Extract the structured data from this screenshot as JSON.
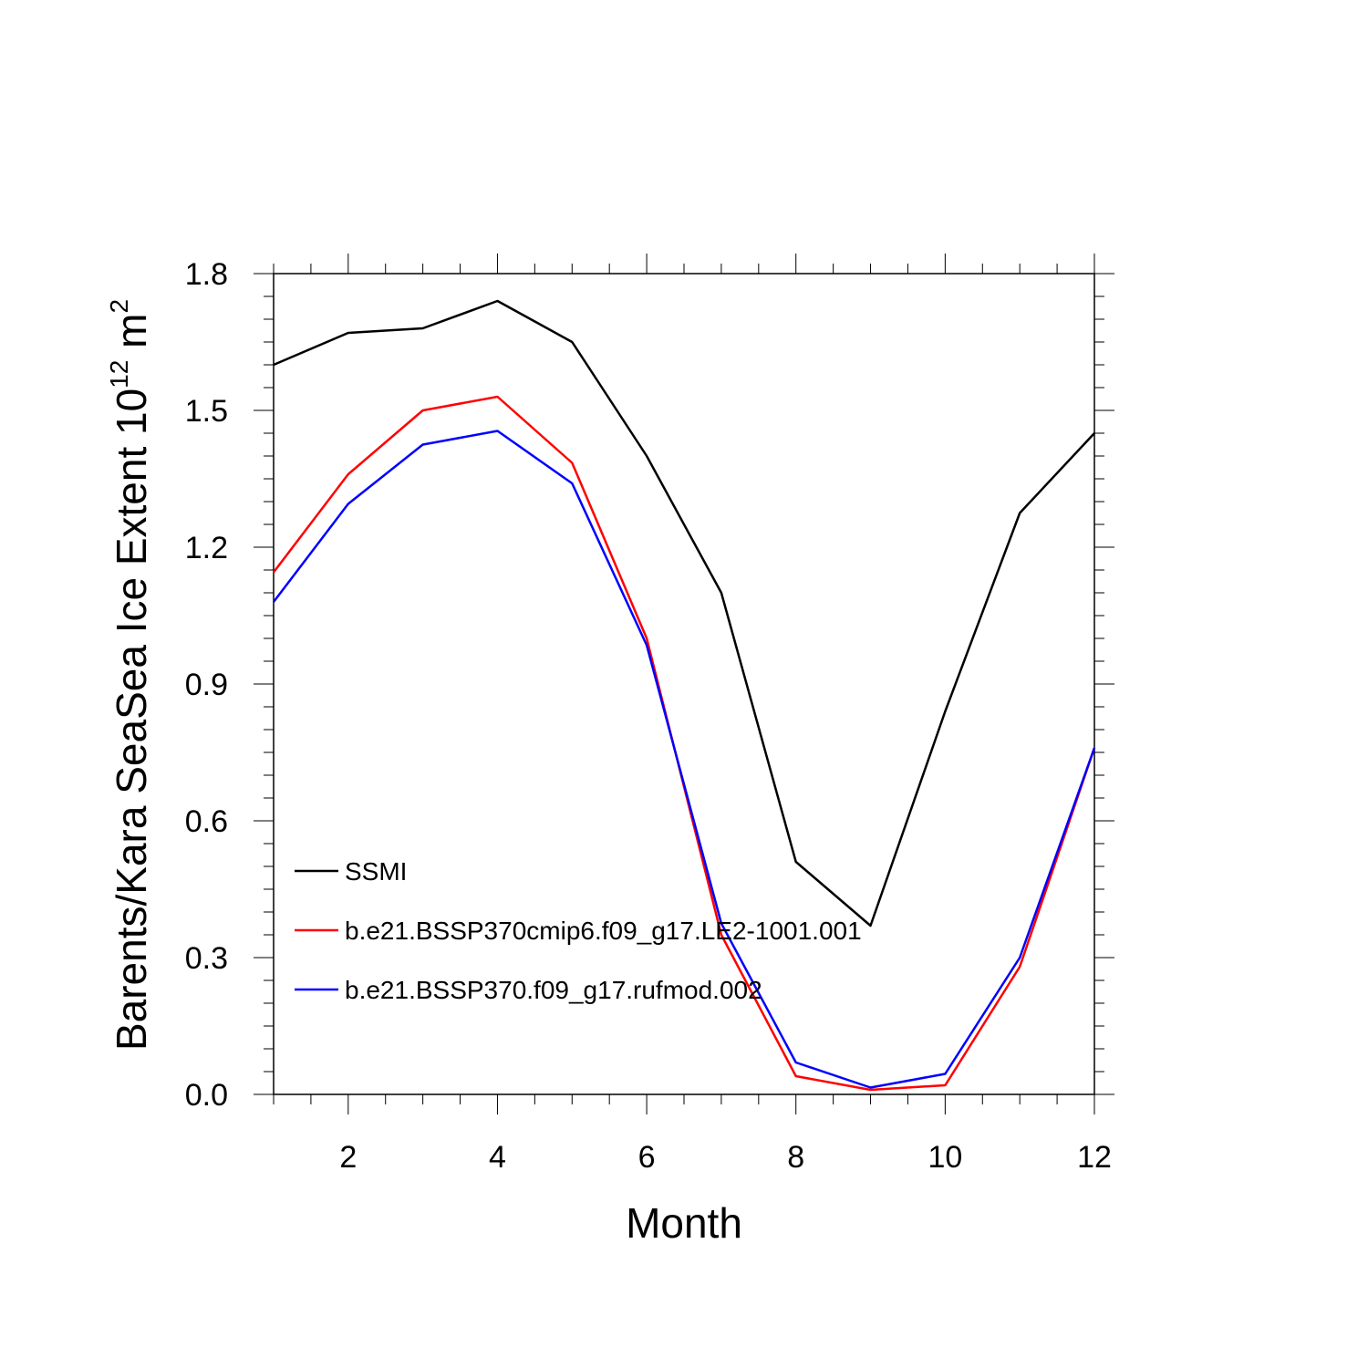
{
  "chart_data": {
    "type": "line",
    "title": "",
    "xlabel": "Month",
    "ylabel": "Barents/Kara SeaSea Ice Extent 10",
    "ylabel_superscript": "12",
    "ylabel_unit": " m",
    "ylabel_unit_superscript": "2",
    "xlim": [
      1,
      12
    ],
    "ylim": [
      0.0,
      1.8
    ],
    "x": [
      1,
      2,
      3,
      4,
      5,
      6,
      7,
      8,
      9,
      10,
      11,
      12
    ],
    "xticks": [
      "2",
      "4",
      "6",
      "8",
      "10",
      "12"
    ],
    "xtick_values": [
      2,
      4,
      6,
      8,
      10,
      12
    ],
    "yticks": [
      "0.0",
      "0.3",
      "0.6",
      "0.9",
      "1.2",
      "1.5",
      "1.8"
    ],
    "ytick_values": [
      0.0,
      0.3,
      0.6,
      0.9,
      1.2,
      1.5,
      1.8
    ],
    "legend_position": "bottom-left",
    "series": [
      {
        "name": "SSMI",
        "color": "#000000",
        "values": [
          1.6,
          1.67,
          1.68,
          1.74,
          1.65,
          1.4,
          1.1,
          0.51,
          0.37,
          0.84,
          1.275,
          1.45
        ]
      },
      {
        "name": "b.e21.BSSP370cmip6.f09_g17.LE2-1001.001",
        "color": "#ff0000",
        "values": [
          1.145,
          1.36,
          1.5,
          1.53,
          1.385,
          1.0,
          0.35,
          0.04,
          0.01,
          0.02,
          0.28,
          0.76
        ]
      },
      {
        "name": "b.e21.BSSP370.f09_g17.rufmod.002",
        "color": "#0000ff",
        "values": [
          1.08,
          1.295,
          1.425,
          1.455,
          1.34,
          0.985,
          0.375,
          0.07,
          0.015,
          0.045,
          0.3,
          0.76
        ]
      }
    ]
  }
}
